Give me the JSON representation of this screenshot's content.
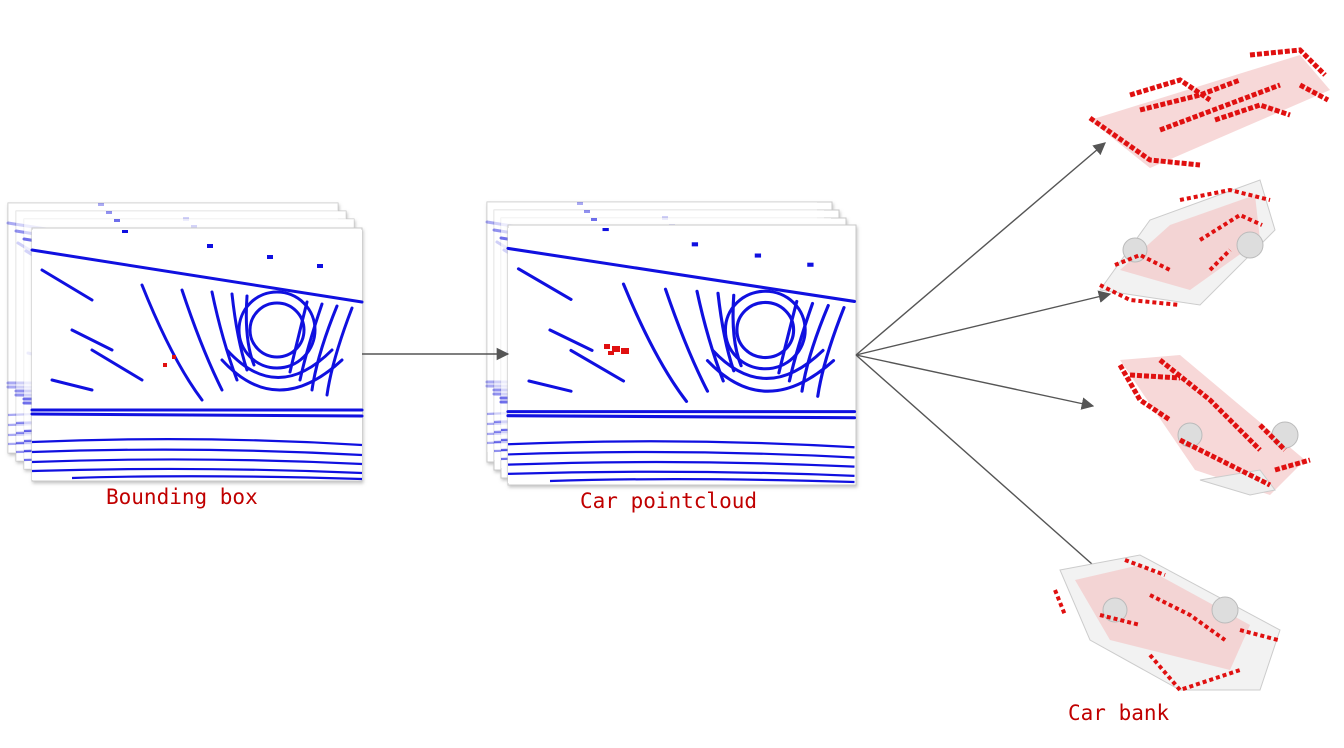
{
  "labels": {
    "bounding_box": "Bounding box",
    "car_pointcloud": "Car pointcloud",
    "car_bank": "Car bank"
  },
  "colors": {
    "lidar_points": "#1010e0",
    "car_points": "#e01010",
    "label_text": "#c00000",
    "arrow": "#555555"
  },
  "car_bank_count": 4
}
